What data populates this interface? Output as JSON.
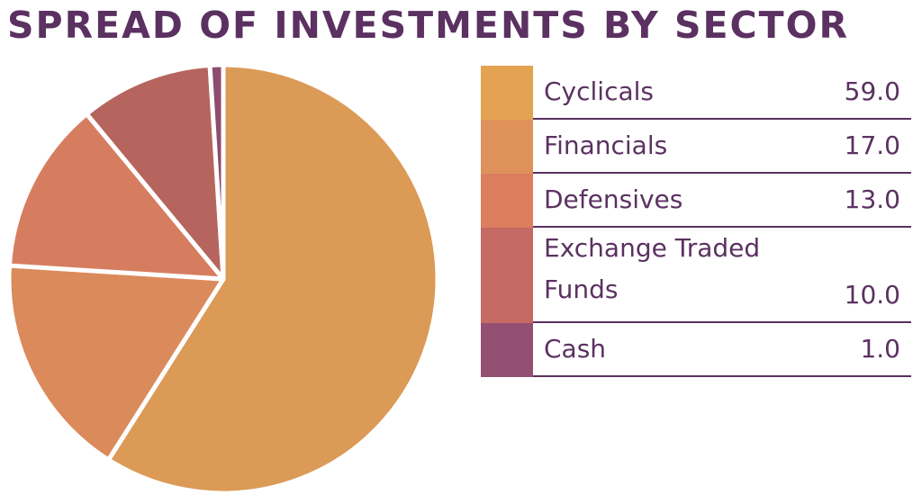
{
  "title": "SPREAD OF INVESTMENTS BY SECTOR",
  "chart_data": {
    "type": "pie",
    "title": "SPREAD OF INVESTMENTS BY SECTOR",
    "categories": [
      "Cyclicals",
      "Financials",
      "Defensives",
      "Exchange Traded Funds",
      "Cash"
    ],
    "values": [
      59.0,
      17.0,
      13.0,
      10.0,
      1.0
    ],
    "value_labels": [
      "59.0",
      "17.0",
      "13.0",
      "10.0",
      "1.0"
    ],
    "colors": [
      "#dc9a57",
      "#db8a5c",
      "#d67d60",
      "#b5655d",
      "#8e4d6e"
    ],
    "legend_colors": [
      "#e3a353",
      "#df915b",
      "#dc7d5e",
      "#c56964",
      "#945073"
    ],
    "legend_placement": "right"
  },
  "legend": {
    "rows": [
      {
        "label": "Cyclicals",
        "value": "59.0"
      },
      {
        "label": "Financials",
        "value": "17.0"
      },
      {
        "label": "Defensives",
        "value": "13.0"
      },
      {
        "label": "Exchange Traded",
        "label2": "Funds",
        "value": "10.0"
      },
      {
        "label": "Cash",
        "value": "1.0"
      }
    ]
  }
}
